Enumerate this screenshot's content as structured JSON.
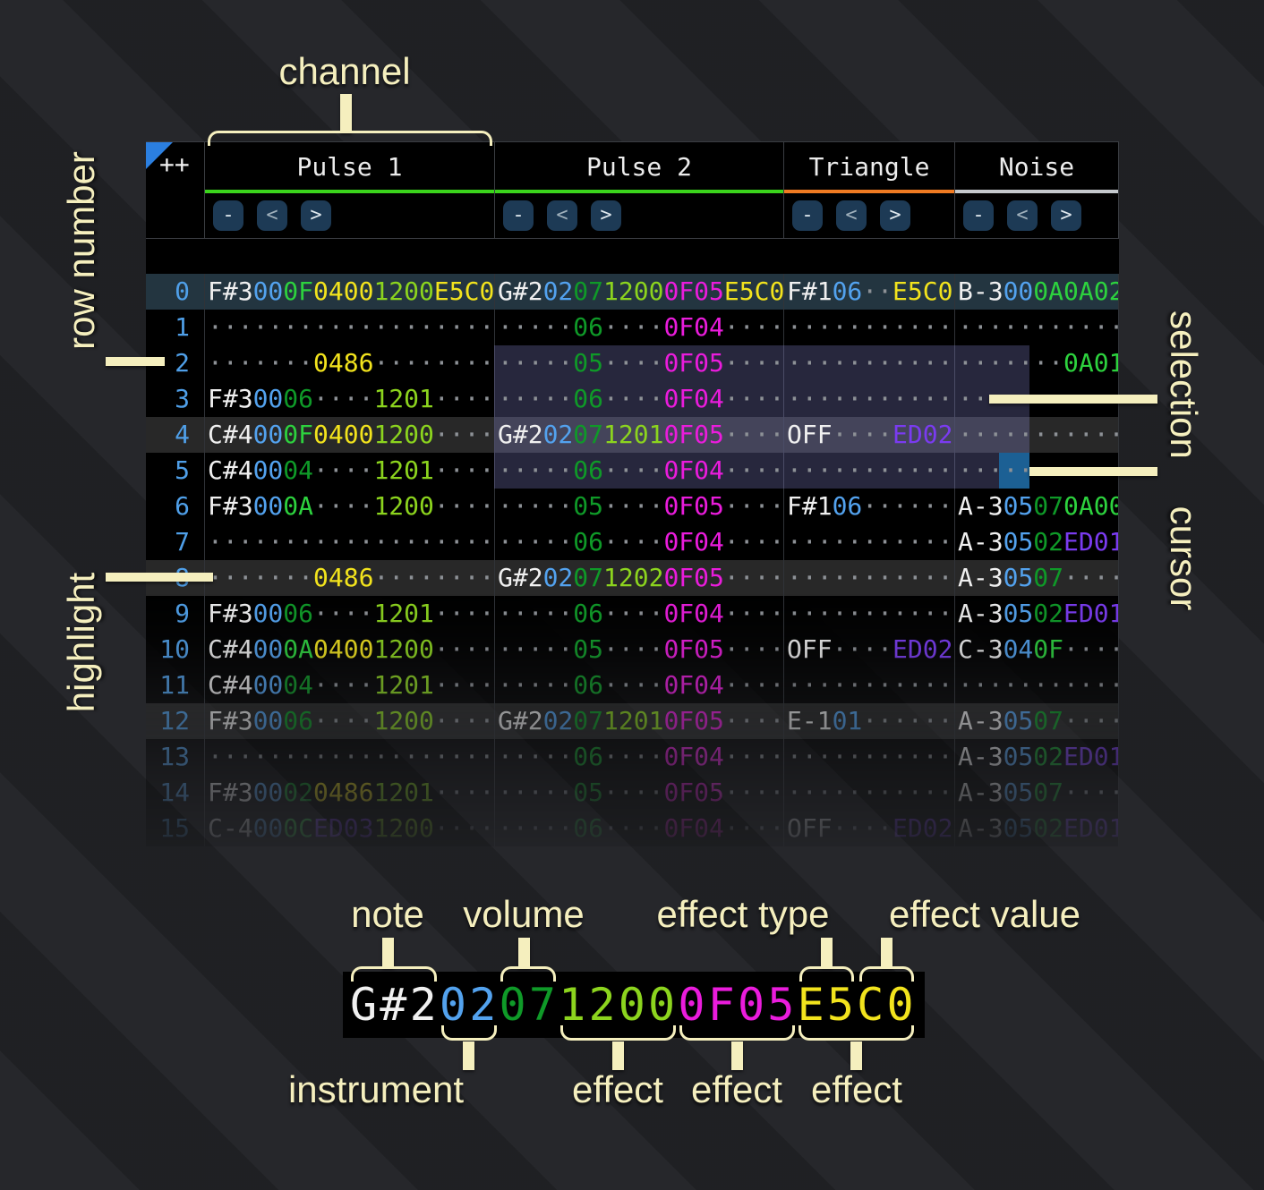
{
  "colors": {
    "white": "#f0f0f0",
    "blue": "#53a2ee",
    "green_dark": "#0f9a28",
    "green_bright": "#2dd23e",
    "lime": "#8cd41e",
    "yellow": "#f2e31d",
    "magenta": "#ea1cdc",
    "purple": "#7a3bf0",
    "dot_gray": "#8d9196",
    "row_number_blue": "#4f9fe8",
    "annotation_cream": "#f5efbe",
    "row0_bg": "#233540",
    "highlight_bg": "#282828",
    "selection_bg": "rgba(152,152,235,0.26)",
    "cursor_bg": "#1c6094",
    "button_bg": "#1d3a55",
    "corner_triangle_blue": "#2b7fe0"
  },
  "header": {
    "corner_label": "++",
    "channels": [
      {
        "name": "Pulse 1",
        "underline": "#3bd41c"
      },
      {
        "name": "Pulse 2",
        "underline": "#3bd41c"
      },
      {
        "name": "Triangle",
        "underline": "#f07b22"
      },
      {
        "name": "Noise",
        "underline": "#c4c8cc"
      }
    ],
    "channel_buttons": [
      "-",
      "<",
      ">"
    ]
  },
  "tracker": {
    "rows": [
      {
        "n": "0",
        "p1": [
          [
            "F#3",
            "w"
          ],
          [
            "00",
            "b"
          ],
          [
            "0F",
            "g2"
          ],
          [
            "0400",
            "y"
          ],
          [
            "1200",
            "l"
          ],
          [
            "E5C0",
            "y"
          ]
        ],
        "p2": [
          [
            "G#2",
            "w"
          ],
          [
            "02",
            "b"
          ],
          [
            "07",
            "g1"
          ],
          [
            "1200",
            "l"
          ],
          [
            "0F05",
            "m"
          ],
          [
            "E5C0",
            "y"
          ]
        ],
        "tri": [
          [
            "F#1",
            "w"
          ],
          [
            "06",
            "b"
          ],
          [
            "··",
            "d"
          ],
          [
            "E5C0",
            "y"
          ]
        ],
        "noi": [
          [
            "B-3",
            "w"
          ],
          [
            "00",
            "b"
          ],
          [
            "0A",
            "g2"
          ],
          [
            "0A02",
            "g2"
          ]
        ]
      },
      {
        "n": "1",
        "p1": [
          [
            "···················",
            "d"
          ]
        ],
        "p2": [
          [
            "·····",
            "d"
          ],
          [
            "06",
            "g1"
          ],
          [
            "····",
            "d"
          ],
          [
            "0F04",
            "m"
          ],
          [
            "····",
            "d"
          ]
        ],
        "tri": [
          [
            "···········",
            "d"
          ]
        ],
        "noi": [
          [
            "···········",
            "d"
          ]
        ]
      },
      {
        "n": "2",
        "p1": [
          [
            "·······",
            "d"
          ],
          [
            "0486",
            "y"
          ],
          [
            "········",
            "d"
          ]
        ],
        "p2": [
          [
            "·····",
            "d"
          ],
          [
            "05",
            "g1"
          ],
          [
            "····",
            "d"
          ],
          [
            "0F05",
            "m"
          ],
          [
            "····",
            "d"
          ]
        ],
        "tri": [
          [
            "···········",
            "d"
          ]
        ],
        "noi": [
          [
            "·······",
            "d"
          ],
          [
            "0A01",
            "g2"
          ]
        ]
      },
      {
        "n": "3",
        "p1": [
          [
            "F#3",
            "w"
          ],
          [
            "00",
            "b"
          ],
          [
            "06",
            "g1"
          ],
          [
            "····",
            "d"
          ],
          [
            "1201",
            "l"
          ],
          [
            "····",
            "d"
          ]
        ],
        "p2": [
          [
            "·····",
            "d"
          ],
          [
            "06",
            "g1"
          ],
          [
            "····",
            "d"
          ],
          [
            "0F04",
            "m"
          ],
          [
            "····",
            "d"
          ]
        ],
        "tri": [
          [
            "···········",
            "d"
          ]
        ],
        "noi": [
          [
            "···········",
            "d"
          ]
        ]
      },
      {
        "n": "4",
        "p1": [
          [
            "C#4",
            "w"
          ],
          [
            "00",
            "b"
          ],
          [
            "0F",
            "g2"
          ],
          [
            "0400",
            "y"
          ],
          [
            "1200",
            "l"
          ],
          [
            "····",
            "d"
          ]
        ],
        "p2": [
          [
            "G#2",
            "w"
          ],
          [
            "02",
            "b"
          ],
          [
            "07",
            "g1"
          ],
          [
            "1201",
            "l"
          ],
          [
            "0F05",
            "m"
          ],
          [
            "····",
            "d"
          ]
        ],
        "tri": [
          [
            "OFF",
            "w"
          ],
          [
            "····",
            "d"
          ],
          [
            "ED02",
            "p"
          ]
        ],
        "noi": [
          [
            "···········",
            "d"
          ]
        ]
      },
      {
        "n": "5",
        "p1": [
          [
            "C#4",
            "w"
          ],
          [
            "00",
            "b"
          ],
          [
            "04",
            "g1"
          ],
          [
            "····",
            "d"
          ],
          [
            "1201",
            "l"
          ],
          [
            "····",
            "d"
          ]
        ],
        "p2": [
          [
            "·····",
            "d"
          ],
          [
            "06",
            "g1"
          ],
          [
            "····",
            "d"
          ],
          [
            "0F04",
            "m"
          ],
          [
            "····",
            "d"
          ]
        ],
        "tri": [
          [
            "···········",
            "d"
          ]
        ],
        "noi": [
          [
            "···········",
            "d"
          ]
        ]
      },
      {
        "n": "6",
        "p1": [
          [
            "F#3",
            "w"
          ],
          [
            "00",
            "b"
          ],
          [
            "0A",
            "g2"
          ],
          [
            "····",
            "d"
          ],
          [
            "1200",
            "l"
          ],
          [
            "····",
            "d"
          ]
        ],
        "p2": [
          [
            "·····",
            "d"
          ],
          [
            "05",
            "g1"
          ],
          [
            "····",
            "d"
          ],
          [
            "0F05",
            "m"
          ],
          [
            "····",
            "d"
          ]
        ],
        "tri": [
          [
            "F#1",
            "w"
          ],
          [
            "06",
            "b"
          ],
          [
            "······",
            "d"
          ]
        ],
        "noi": [
          [
            "A-3",
            "w"
          ],
          [
            "05",
            "b"
          ],
          [
            "07",
            "g1"
          ],
          [
            "0A00",
            "g2"
          ]
        ]
      },
      {
        "n": "7",
        "p1": [
          [
            "···················",
            "d"
          ]
        ],
        "p2": [
          [
            "·····",
            "d"
          ],
          [
            "06",
            "g1"
          ],
          [
            "····",
            "d"
          ],
          [
            "0F04",
            "m"
          ],
          [
            "····",
            "d"
          ]
        ],
        "tri": [
          [
            "···········",
            "d"
          ]
        ],
        "noi": [
          [
            "A-3",
            "w"
          ],
          [
            "05",
            "b"
          ],
          [
            "02",
            "g1"
          ],
          [
            "ED01",
            "p"
          ]
        ]
      },
      {
        "n": "8",
        "p1": [
          [
            "·······",
            "d"
          ],
          [
            "0486",
            "y"
          ],
          [
            "········",
            "d"
          ]
        ],
        "p2": [
          [
            "G#2",
            "w"
          ],
          [
            "02",
            "b"
          ],
          [
            "07",
            "g1"
          ],
          [
            "1202",
            "l"
          ],
          [
            "0F05",
            "m"
          ],
          [
            "····",
            "d"
          ]
        ],
        "tri": [
          [
            "···········",
            "d"
          ]
        ],
        "noi": [
          [
            "A-3",
            "w"
          ],
          [
            "05",
            "b"
          ],
          [
            "07",
            "g1"
          ],
          [
            "····",
            "d"
          ]
        ]
      },
      {
        "n": "9",
        "p1": [
          [
            "F#3",
            "w"
          ],
          [
            "00",
            "b"
          ],
          [
            "06",
            "g1"
          ],
          [
            "····",
            "d"
          ],
          [
            "1201",
            "l"
          ],
          [
            "····",
            "d"
          ]
        ],
        "p2": [
          [
            "·····",
            "d"
          ],
          [
            "06",
            "g1"
          ],
          [
            "····",
            "d"
          ],
          [
            "0F04",
            "m"
          ],
          [
            "····",
            "d"
          ]
        ],
        "tri": [
          [
            "···········",
            "d"
          ]
        ],
        "noi": [
          [
            "A-3",
            "w"
          ],
          [
            "05",
            "b"
          ],
          [
            "02",
            "g1"
          ],
          [
            "ED01",
            "p"
          ]
        ]
      },
      {
        "n": "10",
        "p1": [
          [
            "C#4",
            "w"
          ],
          [
            "00",
            "b"
          ],
          [
            "0A",
            "g2"
          ],
          [
            "0400",
            "y"
          ],
          [
            "1200",
            "l"
          ],
          [
            "····",
            "d"
          ]
        ],
        "p2": [
          [
            "·····",
            "d"
          ],
          [
            "05",
            "g1"
          ],
          [
            "····",
            "d"
          ],
          [
            "0F05",
            "m"
          ],
          [
            "····",
            "d"
          ]
        ],
        "tri": [
          [
            "OFF",
            "w"
          ],
          [
            "····",
            "d"
          ],
          [
            "ED02",
            "p"
          ]
        ],
        "noi": [
          [
            "C-3",
            "w"
          ],
          [
            "04",
            "b"
          ],
          [
            "0F",
            "g2"
          ],
          [
            "····",
            "d"
          ]
        ]
      },
      {
        "n": "11",
        "p1": [
          [
            "C#4",
            "w"
          ],
          [
            "00",
            "b"
          ],
          [
            "04",
            "g1"
          ],
          [
            "····",
            "d"
          ],
          [
            "1201",
            "l"
          ],
          [
            "····",
            "d"
          ]
        ],
        "p2": [
          [
            "·····",
            "d"
          ],
          [
            "06",
            "g1"
          ],
          [
            "····",
            "d"
          ],
          [
            "0F04",
            "m"
          ],
          [
            "····",
            "d"
          ]
        ],
        "tri": [
          [
            "···········",
            "d"
          ]
        ],
        "noi": [
          [
            "···········",
            "d"
          ]
        ]
      },
      {
        "n": "12",
        "p1": [
          [
            "F#3",
            "w"
          ],
          [
            "00",
            "b"
          ],
          [
            "06",
            "g1"
          ],
          [
            "····",
            "d"
          ],
          [
            "1200",
            "l"
          ],
          [
            "····",
            "d"
          ]
        ],
        "p2": [
          [
            "G#2",
            "w"
          ],
          [
            "02",
            "b"
          ],
          [
            "07",
            "g1"
          ],
          [
            "1201",
            "l"
          ],
          [
            "0F05",
            "m"
          ],
          [
            "····",
            "d"
          ]
        ],
        "tri": [
          [
            "E-1",
            "w"
          ],
          [
            "01",
            "b"
          ],
          [
            "······",
            "d"
          ]
        ],
        "noi": [
          [
            "A-3",
            "w"
          ],
          [
            "05",
            "b"
          ],
          [
            "07",
            "g1"
          ],
          [
            "····",
            "d"
          ]
        ]
      },
      {
        "n": "13",
        "p1": [
          [
            "···················",
            "d"
          ]
        ],
        "p2": [
          [
            "·····",
            "d"
          ],
          [
            "06",
            "g1"
          ],
          [
            "····",
            "d"
          ],
          [
            "0F04",
            "m"
          ],
          [
            "····",
            "d"
          ]
        ],
        "tri": [
          [
            "···········",
            "d"
          ]
        ],
        "noi": [
          [
            "A-3",
            "w"
          ],
          [
            "05",
            "b"
          ],
          [
            "02",
            "g1"
          ],
          [
            "ED01",
            "p"
          ]
        ]
      },
      {
        "n": "14",
        "p1": [
          [
            "F#3",
            "w"
          ],
          [
            "00",
            "b"
          ],
          [
            "02",
            "g1"
          ],
          [
            "0486",
            "y"
          ],
          [
            "1201",
            "l"
          ],
          [
            "····",
            "d"
          ]
        ],
        "p2": [
          [
            "·····",
            "d"
          ],
          [
            "05",
            "g1"
          ],
          [
            "····",
            "d"
          ],
          [
            "0F05",
            "m"
          ],
          [
            "····",
            "d"
          ]
        ],
        "tri": [
          [
            "···········",
            "d"
          ]
        ],
        "noi": [
          [
            "A-3",
            "w"
          ],
          [
            "05",
            "b"
          ],
          [
            "07",
            "g1"
          ],
          [
            "····",
            "d"
          ]
        ]
      },
      {
        "n": "15",
        "p1": [
          [
            "C-4",
            "w"
          ],
          [
            "00",
            "b"
          ],
          [
            "0C",
            "g2"
          ],
          [
            "ED03",
            "p"
          ],
          [
            "1200",
            "l"
          ],
          [
            "····",
            "d"
          ]
        ],
        "p2": [
          [
            "·····",
            "d"
          ],
          [
            "06",
            "g1"
          ],
          [
            "····",
            "d"
          ],
          [
            "0F04",
            "m"
          ],
          [
            "····",
            "d"
          ]
        ],
        "tri": [
          [
            "OFF",
            "w"
          ],
          [
            "····",
            "d"
          ],
          [
            "ED02",
            "p"
          ]
        ],
        "noi": [
          [
            "A-3",
            "w"
          ],
          [
            "05",
            "b"
          ],
          [
            "02",
            "g1"
          ],
          [
            "ED01",
            "p"
          ]
        ]
      }
    ],
    "state": {
      "selection_rows": [
        2,
        5
      ],
      "cursor": {
        "row": "5",
        "channel": "Noise",
        "field": "instrument"
      }
    }
  },
  "formula": {
    "segments": [
      [
        "G#2",
        "w"
      ],
      [
        "02",
        "b"
      ],
      [
        "07",
        "g1"
      ],
      [
        "1200",
        "l"
      ],
      [
        "0F05",
        "m"
      ],
      [
        "E5C0",
        "y"
      ]
    ]
  },
  "annotations": {
    "channel": "channel",
    "row_number": "row number",
    "highlight": "highlight",
    "selection": "selection",
    "cursor": "cursor",
    "note": "note",
    "volume": "volume",
    "effect_type": "effect type",
    "effect_value": "effect value",
    "instrument": "instrument",
    "effect": "effect"
  }
}
